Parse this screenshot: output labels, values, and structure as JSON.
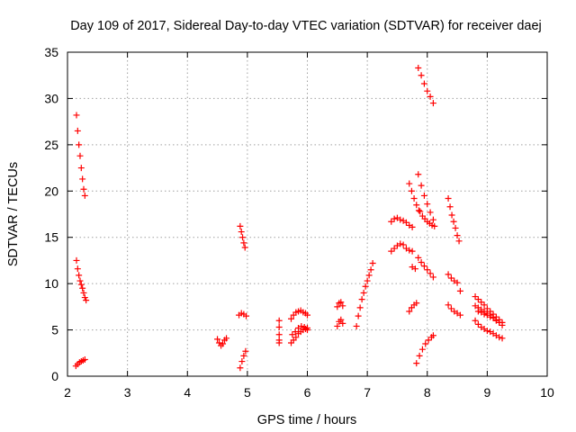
{
  "chart_data": {
    "type": "scatter",
    "title": "Day 109 of 2017, Sidereal Day-to-day VTEC variation (SDTVAR) for receiver daej",
    "xlabel": "GPS time / hours",
    "ylabel": "SDTVAR / TECUs",
    "xlim": [
      2,
      10
    ],
    "ylim": [
      0,
      35
    ],
    "xticks": [
      "2",
      "3",
      "4",
      "5",
      "6",
      "7",
      "8",
      "9",
      "10"
    ],
    "yticks": [
      "0",
      "5",
      "10",
      "15",
      "20",
      "25",
      "30",
      "35"
    ],
    "grid": true,
    "marker": "+",
    "color": "#ff0000",
    "series": [
      {
        "name": "s1",
        "x": [
          2.15,
          2.17,
          2.19,
          2.21,
          2.23,
          2.25,
          2.27,
          2.29
        ],
        "y": [
          28.2,
          26.5,
          25.0,
          23.8,
          22.5,
          21.3,
          20.2,
          19.5
        ]
      },
      {
        "name": "s2",
        "x": [
          2.15,
          2.17,
          2.19,
          2.21,
          2.23,
          2.25,
          2.27,
          2.29,
          2.31
        ],
        "y": [
          12.5,
          11.6,
          10.9,
          10.3,
          9.9,
          9.5,
          9.0,
          8.5,
          8.2
        ]
      },
      {
        "name": "s3",
        "x": [
          2.14,
          2.17,
          2.2,
          2.23,
          2.26,
          2.29
        ],
        "y": [
          1.1,
          1.3,
          1.5,
          1.6,
          1.7,
          1.8
        ]
      },
      {
        "name": "s4",
        "x": [
          4.5,
          4.53,
          4.56,
          4.59,
          4.62,
          4.65
        ],
        "y": [
          4.0,
          3.6,
          3.3,
          3.5,
          3.9,
          4.1
        ]
      },
      {
        "name": "s5",
        "x": [
          4.88,
          4.9,
          4.92,
          4.94,
          4.96
        ],
        "y": [
          16.2,
          15.6,
          15.0,
          14.4,
          13.9
        ]
      },
      {
        "name": "s6",
        "x": [
          4.86,
          4.9,
          4.94,
          4.98
        ],
        "y": [
          6.6,
          6.8,
          6.7,
          6.5
        ]
      },
      {
        "name": "s7",
        "x": [
          4.88,
          4.91,
          4.94,
          4.97
        ],
        "y": [
          0.9,
          1.6,
          2.2,
          2.7
        ]
      },
      {
        "name": "s8",
        "x": [
          5.53,
          5.53,
          5.53,
          5.53,
          5.53
        ],
        "y": [
          6.0,
          5.3,
          4.5,
          3.9,
          3.6
        ]
      },
      {
        "name": "s9",
        "x": [
          5.73,
          5.77,
          5.81,
          5.85,
          5.89,
          5.93,
          5.97,
          6.0
        ],
        "y": [
          6.2,
          6.6,
          6.9,
          7.0,
          7.1,
          6.9,
          6.8,
          6.6
        ]
      },
      {
        "name": "s10",
        "x": [
          5.73,
          5.77,
          5.81,
          5.85,
          5.89,
          5.93,
          5.97,
          6.0,
          5.75,
          5.8,
          5.85,
          5.9,
          5.95,
          6.0
        ],
        "y": [
          3.6,
          3.9,
          4.2,
          4.6,
          4.8,
          5.0,
          5.1,
          5.0,
          4.5,
          4.8,
          5.2,
          5.4,
          5.3,
          5.2
        ]
      },
      {
        "name": "s11",
        "x": [
          6.5,
          6.53,
          6.56,
          6.59,
          6.5,
          6.53,
          6.56,
          6.59
        ],
        "y": [
          7.5,
          7.9,
          8.0,
          7.6,
          5.4,
          5.9,
          6.1,
          5.7
        ]
      },
      {
        "name": "s12",
        "x": [
          6.82,
          6.85,
          6.88,
          6.91,
          6.94,
          6.97,
          7.0,
          7.03,
          7.06,
          7.09
        ],
        "y": [
          5.4,
          6.5,
          7.4,
          8.3,
          9.0,
          9.7,
          10.3,
          10.9,
          11.5,
          12.2
        ]
      },
      {
        "name": "s13",
        "x": [
          7.4,
          7.45,
          7.5,
          7.55,
          7.6,
          7.65,
          7.7,
          7.75
        ],
        "y": [
          16.7,
          17.0,
          17.1,
          16.9,
          16.8,
          16.6,
          16.3,
          16.1
        ]
      },
      {
        "name": "s14",
        "x": [
          7.4,
          7.45,
          7.5,
          7.55,
          7.6,
          7.65,
          7.7,
          7.75
        ],
        "y": [
          13.5,
          13.8,
          14.1,
          14.3,
          14.2,
          13.8,
          13.6,
          13.5
        ]
      },
      {
        "name": "s15",
        "x": [
          7.7,
          7.74,
          7.78,
          7.82,
          7.86
        ],
        "y": [
          20.8,
          20.0,
          19.2,
          18.5,
          17.9
        ]
      },
      {
        "name": "s16",
        "x": [
          7.85,
          7.9,
          7.95,
          8.0,
          8.05,
          8.1
        ],
        "y": [
          21.8,
          20.6,
          19.5,
          18.6,
          17.7,
          16.9
        ]
      },
      {
        "name": "s17",
        "x": [
          7.88,
          7.92,
          7.96,
          8.0,
          8.04,
          8.08,
          8.12
        ],
        "y": [
          17.8,
          17.3,
          17.0,
          16.7,
          16.5,
          16.3,
          16.2
        ]
      },
      {
        "name": "s18",
        "x": [
          7.85,
          7.9,
          7.95,
          8.0,
          8.05,
          8.1
        ],
        "y": [
          33.3,
          32.5,
          31.6,
          30.8,
          30.2,
          29.5
        ]
      },
      {
        "name": "s19",
        "x": [
          7.75,
          7.8,
          7.85,
          7.9,
          7.95,
          8.0,
          8.05,
          8.1
        ],
        "y": [
          11.8,
          11.6,
          12.8,
          12.3,
          11.9,
          11.5,
          11.1,
          10.7
        ]
      },
      {
        "name": "s20",
        "x": [
          7.7,
          7.74,
          7.78,
          7.82
        ],
        "y": [
          7.0,
          7.4,
          7.7,
          7.9
        ]
      },
      {
        "name": "s21",
        "x": [
          7.82,
          7.87,
          7.92,
          7.97,
          8.02,
          8.07,
          8.1
        ],
        "y": [
          1.4,
          2.2,
          2.9,
          3.5,
          3.9,
          4.2,
          4.4
        ]
      },
      {
        "name": "s22",
        "x": [
          8.35,
          8.38,
          8.41,
          8.44,
          8.47,
          8.5,
          8.53
        ],
        "y": [
          19.2,
          18.3,
          17.4,
          16.7,
          16.0,
          15.2,
          14.6
        ]
      },
      {
        "name": "s23",
        "x": [
          8.35,
          8.4,
          8.45,
          8.5,
          8.55
        ],
        "y": [
          11.0,
          10.6,
          10.3,
          10.1,
          9.2
        ]
      },
      {
        "name": "s24",
        "x": [
          8.35,
          8.4,
          8.45,
          8.5,
          8.55
        ],
        "y": [
          7.7,
          7.3,
          7.0,
          6.8,
          6.6
        ]
      },
      {
        "name": "s25",
        "x": [
          8.8,
          8.85,
          8.9,
          8.95,
          9.0,
          9.05,
          9.1,
          9.15,
          9.2,
          9.25
        ],
        "y": [
          8.6,
          8.3,
          8.0,
          7.7,
          7.3,
          7.0,
          6.7,
          6.4,
          6.1,
          5.8
        ]
      },
      {
        "name": "s26",
        "x": [
          8.8,
          8.85,
          8.9,
          8.95,
          9.0,
          9.05,
          9.1,
          9.15,
          9.2,
          9.25
        ],
        "y": [
          7.6,
          7.4,
          7.2,
          7.0,
          6.8,
          6.6,
          6.3,
          6.1,
          5.8,
          5.5
        ]
      },
      {
        "name": "s27",
        "x": [
          8.8,
          8.85,
          8.9,
          8.95,
          9.0,
          9.05,
          9.1,
          9.15,
          9.2,
          9.25
        ],
        "y": [
          6.0,
          5.6,
          5.3,
          5.1,
          4.9,
          4.8,
          4.6,
          4.4,
          4.2,
          4.1
        ]
      },
      {
        "name": "s28",
        "x": [
          8.85,
          8.9,
          8.95,
          9.0,
          9.05,
          9.1,
          9.15,
          9.2
        ],
        "y": [
          7.0,
          6.9,
          6.7,
          6.6,
          6.4,
          6.3,
          6.0,
          5.8
        ]
      }
    ]
  }
}
